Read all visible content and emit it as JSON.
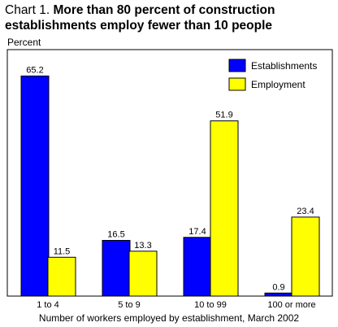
{
  "title": {
    "prefix": "Chart 1.",
    "line1": "More than 80 percent of construction",
    "line2": "establishments employ fewer than 10 people"
  },
  "chart_data": {
    "type": "bar",
    "ylabel": "Percent",
    "xlabel": "Number of workers employed by establishment, March 2002",
    "categories": [
      "1 to 4",
      "5 to 9",
      "10 to 99",
      "100 or more"
    ],
    "series": [
      {
        "name": "Establishments",
        "color": "#0000ff",
        "values": [
          65.2,
          16.5,
          17.4,
          0.9
        ]
      },
      {
        "name": "Employment",
        "color": "#ffff00",
        "values": [
          11.5,
          13.3,
          51.9,
          23.4
        ]
      }
    ],
    "ylim": [
      0,
      70
    ],
    "grid": false,
    "legend": "top-right"
  }
}
